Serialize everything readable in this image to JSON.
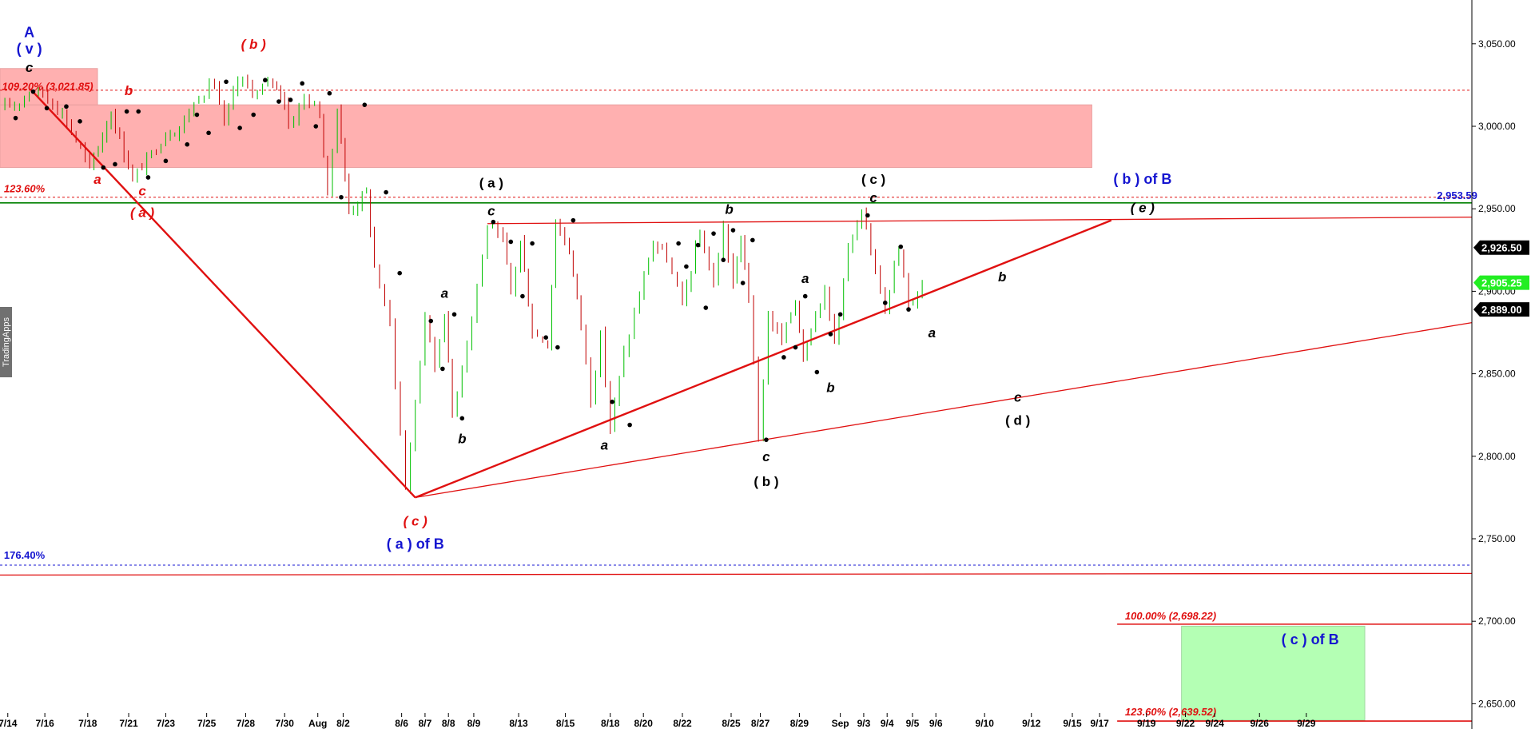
{
  "chart_data": {
    "type": "candlestick",
    "y_axis": {
      "ylim": [
        2635,
        3090
      ],
      "ticks": [
        2650,
        2700,
        2750,
        2800,
        2850,
        2900,
        2950,
        3000,
        3050
      ],
      "tick_labels": [
        "2,650.00",
        "2,700.00",
        "2,750.00",
        "2,800.00",
        "2,850.00",
        "2,900.00",
        "2,950.00",
        "3,000.00",
        "3,050.00"
      ],
      "price_tags": [
        {
          "value": 2926.5,
          "label": "2,926.50",
          "bg": "#000000",
          "fg": "#ffffff"
        },
        {
          "value": 2905.25,
          "label": "2,905.25",
          "bg": "#22ee22",
          "fg": "#ffffff"
        },
        {
          "value": 2889.0,
          "label": "2,889.00",
          "bg": "#000000",
          "fg": "#ffffff"
        }
      ]
    },
    "x_axis": {
      "tick_labels": [
        "7/14",
        "7/16",
        "7/18",
        "7/21",
        "7/23",
        "7/25",
        "7/28",
        "7/30",
        "Aug",
        "8/2",
        "8/6",
        "8/7",
        "8/8",
        "8/9",
        "8/13",
        "8/15",
        "8/18",
        "8/20",
        "8/22",
        "8/25",
        "8/27",
        "8/29",
        "Sep",
        "9/3",
        "9/4",
        "9/5",
        "9/6",
        "9/10",
        "9/12",
        "9/15",
        "9/17",
        "9/19",
        "9/22",
        "9/24",
        "9/26",
        "9/29"
      ],
      "label_index": [
        0.4,
        2.3,
        4.5,
        6.6,
        8.5,
        10.6,
        12.6,
        14.6,
        16.3,
        17.6,
        20.6,
        21.8,
        23.0,
        24.3,
        26.6,
        29.0,
        31.3,
        33.0,
        35.0,
        37.5,
        39.0,
        41.0,
        43.1,
        44.3,
        45.5,
        46.8,
        48.0,
        50.5,
        52.9,
        55.0,
        56.4,
        58.8,
        60.8,
        62.3,
        64.6,
        67.0
      ]
    },
    "colors": {
      "up": "#00c000",
      "down": "#c00000",
      "pivot_dot": "#000000",
      "trendline": "#e01010",
      "resistance_zone": "#ffb0b0",
      "target_zone": "#b4ffb4",
      "green_line": "#008000",
      "blue_label": "#1515d0",
      "red_label": "#e01010"
    },
    "price_path": [
      [
        0.0,
        3010
      ],
      [
        1.0,
        3015
      ],
      [
        1.5,
        3022
      ],
      [
        2.2,
        3020
      ],
      [
        3.2,
        3008
      ],
      [
        4.6,
        2975
      ],
      [
        5.7,
        3008
      ],
      [
        6.8,
        2968
      ],
      [
        8.5,
        2995
      ],
      [
        9.2,
        2999
      ],
      [
        10.2,
        3018
      ],
      [
        11.0,
        3027
      ],
      [
        11.5,
        3000
      ],
      [
        12.2,
        3028
      ],
      [
        13.2,
        3020
      ],
      [
        14.0,
        3028
      ],
      [
        14.6,
        3015
      ],
      [
        14.8,
        3000
      ],
      [
        15.6,
        3018
      ],
      [
        16.4,
        3008
      ],
      [
        16.8,
        2958
      ],
      [
        17.3,
        3012
      ],
      [
        17.9,
        2948
      ],
      [
        18.8,
        2960
      ],
      [
        19.2,
        2915
      ],
      [
        20.0,
        2880
      ],
      [
        20.8,
        2780
      ],
      [
        21.8,
        2885
      ],
      [
        22.3,
        2855
      ],
      [
        22.8,
        2888
      ],
      [
        23.2,
        2825
      ],
      [
        24.2,
        2885
      ],
      [
        25.0,
        2940
      ],
      [
        25.8,
        2930
      ],
      [
        26.2,
        2900
      ],
      [
        26.7,
        2930
      ],
      [
        27.3,
        2875
      ],
      [
        28.1,
        2868
      ],
      [
        28.5,
        2942
      ],
      [
        29.2,
        2925
      ],
      [
        29.8,
        2880
      ],
      [
        30.3,
        2835
      ],
      [
        30.8,
        2872
      ],
      [
        31.3,
        2818
      ],
      [
        32.0,
        2862
      ],
      [
        32.8,
        2898
      ],
      [
        33.5,
        2930
      ],
      [
        34.2,
        2920
      ],
      [
        35.0,
        2892
      ],
      [
        35.9,
        2935
      ],
      [
        36.6,
        2905
      ],
      [
        37.1,
        2938
      ],
      [
        37.6,
        2905
      ],
      [
        38.0,
        2932
      ],
      [
        38.4,
        2898
      ],
      [
        38.9,
        2810
      ],
      [
        39.4,
        2885
      ],
      [
        40.1,
        2870
      ],
      [
        40.8,
        2895
      ],
      [
        41.2,
        2860
      ],
      [
        41.6,
        2880
      ],
      [
        42.3,
        2900
      ],
      [
        42.8,
        2870
      ],
      [
        43.5,
        2925
      ],
      [
        44.2,
        2945
      ],
      [
        44.9,
        2915
      ],
      [
        45.4,
        2892
      ],
      [
        46.1,
        2925
      ],
      [
        46.6,
        2890
      ],
      [
        47.3,
        2905
      ]
    ],
    "pivots": [
      [
        0.8,
        3005
      ],
      [
        1.7,
        3021
      ],
      [
        2.4,
        3011
      ],
      [
        3.4,
        3012
      ],
      [
        4.1,
        3003
      ],
      [
        5.3,
        2975
      ],
      [
        5.9,
        2977
      ],
      [
        6.5,
        3009
      ],
      [
        7.1,
        3009
      ],
      [
        7.6,
        2969
      ],
      [
        8.5,
        2979
      ],
      [
        9.6,
        2989
      ],
      [
        10.1,
        3007
      ],
      [
        10.7,
        2996
      ],
      [
        11.6,
        3027
      ],
      [
        12.3,
        2999
      ],
      [
        13.0,
        3007
      ],
      [
        13.6,
        3028
      ],
      [
        14.3,
        3015
      ],
      [
        14.9,
        3016
      ],
      [
        15.5,
        3026
      ],
      [
        16.2,
        3000
      ],
      [
        16.9,
        3020
      ],
      [
        17.5,
        2957
      ],
      [
        18.7,
        3013
      ],
      [
        19.8,
        2960
      ],
      [
        20.5,
        2911
      ],
      [
        22.1,
        2882
      ],
      [
        22.7,
        2853
      ],
      [
        23.3,
        2886
      ],
      [
        23.7,
        2823
      ],
      [
        25.3,
        2942
      ],
      [
        26.2,
        2930
      ],
      [
        26.8,
        2897
      ],
      [
        27.3,
        2929
      ],
      [
        28.0,
        2872
      ],
      [
        28.6,
        2866
      ],
      [
        29.4,
        2943
      ],
      [
        31.4,
        2833
      ],
      [
        32.3,
        2819
      ],
      [
        34.8,
        2929
      ],
      [
        35.2,
        2915
      ],
      [
        35.8,
        2928
      ],
      [
        36.2,
        2890
      ],
      [
        36.6,
        2935
      ],
      [
        37.1,
        2919
      ],
      [
        37.6,
        2937
      ],
      [
        38.1,
        2905
      ],
      [
        38.6,
        2931
      ],
      [
        39.3,
        2810
      ],
      [
        40.2,
        2860
      ],
      [
        40.8,
        2866
      ],
      [
        41.3,
        2897
      ],
      [
        41.9,
        2851
      ],
      [
        42.6,
        2874
      ],
      [
        43.1,
        2886
      ],
      [
        44.5,
        2946
      ],
      [
        45.4,
        2893
      ],
      [
        46.2,
        2927
      ],
      [
        46.6,
        2889
      ]
    ],
    "zones": [
      {
        "name": "resistance",
        "x0": 0.0,
        "x1": 56.0,
        "y_low": 2975,
        "y_high": 3013
      },
      {
        "name": "resistance-top",
        "x0": 0.0,
        "x1": 5.0,
        "y_low": 3013,
        "y_high": 3035
      },
      {
        "name": "target",
        "x0": 60.6,
        "x1": 70.0,
        "y_low": 2640,
        "y_high": 2697
      }
    ],
    "h_lines": [
      {
        "name": "fib-109-line",
        "y": 3021.85,
        "style": "dashed",
        "color": "#e01010"
      },
      {
        "name": "fib-123-line",
        "y": 2957,
        "style": "dashed",
        "color": "#e01010"
      },
      {
        "name": "level-2953",
        "y": 2953.59,
        "style": "solid",
        "color": "#008000"
      },
      {
        "name": "fib-176-line",
        "y": 2734,
        "style": "dashed",
        "color": "#1515d0"
      },
      {
        "name": "target-100-line",
        "y": 2698.22,
        "style": "solid",
        "color": "#e01010",
        "x_start": 57.3
      },
      {
        "name": "target-123-line",
        "y": 2639.52,
        "style": "solid",
        "color": "#e01010",
        "x_start": 57.3
      }
    ],
    "trendlines": [
      {
        "x1": 1.6,
        "y1": 3022,
        "x2": 21.3,
        "y2": 2775,
        "width": 2.4
      },
      {
        "x1": 21.3,
        "y1": 2775,
        "x2": 57.0,
        "y2": 2943,
        "width": 2.4
      },
      {
        "x1": 25.0,
        "y1": 2941,
        "x2": 76.0,
        "y2": 2945,
        "width": 1.3
      },
      {
        "x1": 21.3,
        "y1": 2775,
        "x2": 76.0,
        "y2": 2882,
        "width": 1.3
      },
      {
        "x1": 0.0,
        "y1": 2728,
        "x2": 76.0,
        "y2": 2729,
        "width": 1.3
      }
    ],
    "annotations": [
      {
        "text": "A",
        "x": 1.5,
        "y": 3054,
        "style": "blue"
      },
      {
        "text": "( v )",
        "x": 1.5,
        "y": 3044,
        "style": "blue"
      },
      {
        "text": "c",
        "x": 1.5,
        "y": 3033,
        "style": "black"
      },
      {
        "text": "b",
        "x": 6.6,
        "y": 3019,
        "style": "red"
      },
      {
        "text": "( b )",
        "x": 13.0,
        "y": 3047,
        "style": "red"
      },
      {
        "text": "a",
        "x": 5.0,
        "y": 2965,
        "style": "red"
      },
      {
        "text": "c",
        "x": 7.3,
        "y": 2958,
        "style": "red"
      },
      {
        "text": "( a )",
        "x": 7.3,
        "y": 2945,
        "style": "red"
      },
      {
        "text": "( a )",
        "x": 25.2,
        "y": 2963,
        "style": "black-up"
      },
      {
        "text": "c",
        "x": 25.2,
        "y": 2946,
        "style": "black"
      },
      {
        "text": "a",
        "x": 22.8,
        "y": 2896,
        "style": "black"
      },
      {
        "text": "b",
        "x": 23.7,
        "y": 2808,
        "style": "black"
      },
      {
        "text": "( c )",
        "x": 21.3,
        "y": 2758,
        "style": "red"
      },
      {
        "text": "( a ) of B",
        "x": 21.3,
        "y": 2744,
        "style": "blue"
      },
      {
        "text": "a",
        "x": 31.0,
        "y": 2804,
        "style": "black"
      },
      {
        "text": "b",
        "x": 37.4,
        "y": 2947,
        "style": "black"
      },
      {
        "text": "c",
        "x": 39.3,
        "y": 2797,
        "style": "black"
      },
      {
        "text": "( b )",
        "x": 39.3,
        "y": 2782,
        "style": "black-up"
      },
      {
        "text": "a",
        "x": 41.3,
        "y": 2905,
        "style": "black"
      },
      {
        "text": "b",
        "x": 42.6,
        "y": 2839,
        "style": "black"
      },
      {
        "text": "( c )",
        "x": 44.8,
        "y": 2965,
        "style": "black-up"
      },
      {
        "text": "c",
        "x": 44.8,
        "y": 2954,
        "style": "black"
      },
      {
        "text": "a",
        "x": 47.8,
        "y": 2872,
        "style": "black"
      },
      {
        "text": "b",
        "x": 51.4,
        "y": 2906,
        "style": "black"
      },
      {
        "text": "c",
        "x": 52.2,
        "y": 2833,
        "style": "black"
      },
      {
        "text": "( d )",
        "x": 52.2,
        "y": 2819,
        "style": "black-up"
      },
      {
        "text": "( b ) of B",
        "x": 58.6,
        "y": 2965,
        "style": "blue"
      },
      {
        "text": "( e )",
        "x": 58.6,
        "y": 2948,
        "style": "black"
      },
      {
        "text": "( c ) of B",
        "x": 67.2,
        "y": 2686,
        "style": "blue"
      }
    ],
    "fib_labels": [
      {
        "text": "109.20% (3,021.85)",
        "x": 0.1,
        "y": 3022,
        "style": "red"
      },
      {
        "text": "123.60%",
        "x": 0.2,
        "y": 2960,
        "style": "red-up"
      },
      {
        "text": "176.40%",
        "x": 0.2,
        "y": 2738,
        "style": "blue"
      },
      {
        "text": "100.00% (2,698.22)",
        "x": 57.7,
        "y": 2701,
        "style": "red"
      },
      {
        "text": "123.60% (2,639.52)",
        "x": 57.7,
        "y": 2643,
        "style": "red"
      },
      {
        "text": "2,953.59",
        "x": 73.7,
        "y": 2956,
        "style": "green"
      }
    ],
    "watermark": "TradingApps"
  }
}
